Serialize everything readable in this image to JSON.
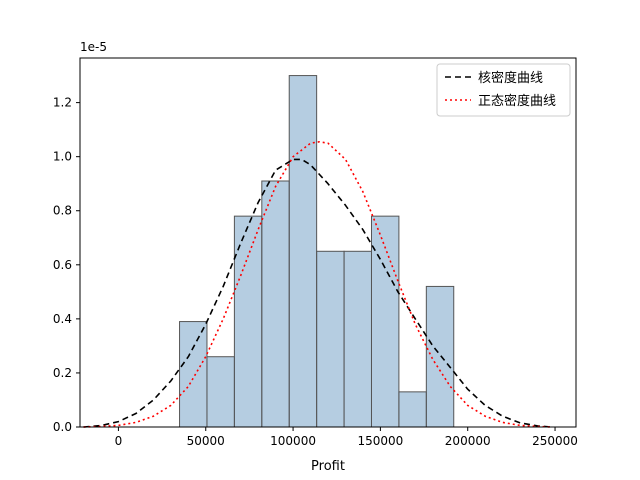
{
  "chart_data": {
    "type": "bar",
    "xlabel": "Profit",
    "ylabel": "",
    "y_offset_label": "1e-5",
    "xlim": [
      -22000,
      262000
    ],
    "ylim": [
      0,
      1.365
    ],
    "x_ticks": [
      0,
      50000,
      100000,
      150000,
      200000,
      250000
    ],
    "y_ticks": [
      0.0,
      0.2,
      0.4,
      0.6,
      0.8,
      1.0,
      1.2
    ],
    "grid": false,
    "legend_position": "top-right",
    "histogram": {
      "color": "#4682b4",
      "edge_color": "#555555",
      "bins": [
        {
          "x0": 35000,
          "x1": 50700,
          "density": 0.39
        },
        {
          "x0": 50700,
          "x1": 66400,
          "density": 0.26
        },
        {
          "x0": 66400,
          "x1": 82100,
          "density": 0.78
        },
        {
          "x0": 82100,
          "x1": 97800,
          "density": 0.91
        },
        {
          "x0": 97800,
          "x1": 113500,
          "density": 1.3
        },
        {
          "x0": 113500,
          "x1": 129200,
          "density": 0.65
        },
        {
          "x0": 129200,
          "x1": 144900,
          "density": 0.65
        },
        {
          "x0": 144900,
          "x1": 160600,
          "density": 0.78
        },
        {
          "x0": 160600,
          "x1": 176300,
          "density": 0.13
        },
        {
          "x0": 176300,
          "x1": 192000,
          "density": 0.52
        }
      ]
    },
    "series": [
      {
        "name": "核密度曲线",
        "color": "#000000",
        "dash": "6,4",
        "x": [
          -20000,
          -10000,
          0,
          10000,
          20000,
          30000,
          40000,
          50000,
          60000,
          70000,
          80000,
          90000,
          100000,
          105000,
          110000,
          120000,
          130000,
          140000,
          150000,
          160000,
          170000,
          180000,
          190000,
          200000,
          210000,
          220000,
          230000,
          240000,
          248000
        ],
        "values": [
          0.0,
          0.005,
          0.02,
          0.05,
          0.1,
          0.17,
          0.26,
          0.38,
          0.52,
          0.68,
          0.83,
          0.95,
          0.99,
          0.99,
          0.97,
          0.9,
          0.82,
          0.73,
          0.62,
          0.5,
          0.4,
          0.3,
          0.22,
          0.14,
          0.08,
          0.04,
          0.015,
          0.004,
          0.0
        ]
      },
      {
        "name": "正态密度曲线",
        "color": "#ff0000",
        "dash": "2,3",
        "x": [
          -20000,
          -10000,
          0,
          10000,
          20000,
          30000,
          40000,
          50000,
          60000,
          70000,
          80000,
          90000,
          100000,
          110000,
          115000,
          120000,
          130000,
          140000,
          150000,
          160000,
          170000,
          180000,
          190000,
          200000,
          210000,
          220000,
          230000,
          240000,
          248000
        ],
        "values": [
          0.0,
          0.002,
          0.006,
          0.017,
          0.04,
          0.08,
          0.15,
          0.26,
          0.4,
          0.56,
          0.73,
          0.89,
          1.0,
          1.05,
          1.055,
          1.05,
          0.99,
          0.87,
          0.71,
          0.54,
          0.38,
          0.25,
          0.15,
          0.08,
          0.04,
          0.017,
          0.006,
          0.002,
          0.0
        ]
      }
    ]
  }
}
